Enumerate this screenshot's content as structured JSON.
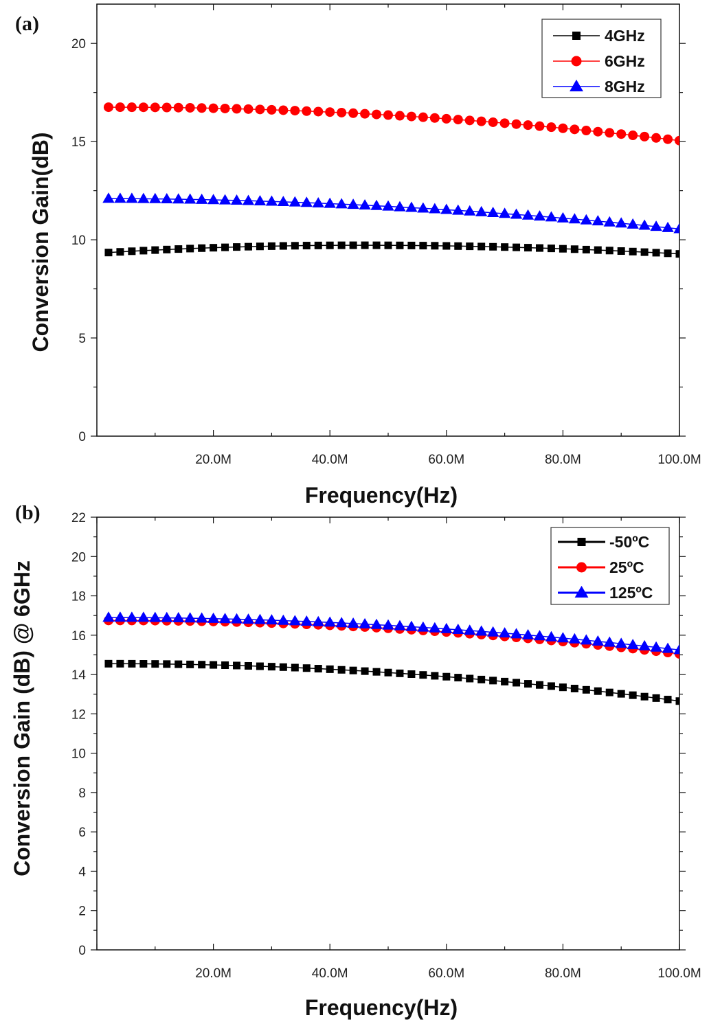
{
  "chart_data": [
    {
      "type": "scatter",
      "panel_label": "(a)",
      "xlabel": "Frequency(Hz)",
      "ylabel": "Conversion Gain(dB)",
      "xlim": [
        0,
        100
      ],
      "ylim": [
        0,
        22
      ],
      "x_unit": "MHz",
      "x_ticks": [
        20,
        40,
        60,
        80,
        100
      ],
      "x_tick_labels": [
        "20.0M",
        "40.0M",
        "60.0M",
        "80.0M",
        "100.0M"
      ],
      "y_ticks": [
        0,
        5,
        10,
        15,
        20
      ],
      "y_tick_labels": [
        "0",
        "5",
        "10",
        "15",
        "20"
      ],
      "legend_position": "top-right",
      "grid": false,
      "x": [
        2,
        4,
        6,
        8,
        10,
        12,
        14,
        16,
        18,
        20,
        22,
        24,
        26,
        28,
        30,
        32,
        34,
        36,
        38,
        40,
        42,
        44,
        46,
        48,
        50,
        52,
        54,
        56,
        58,
        60,
        62,
        64,
        66,
        68,
        70,
        72,
        74,
        76,
        78,
        80,
        82,
        84,
        86,
        88,
        90,
        92,
        94,
        96,
        98,
        100
      ],
      "series": [
        {
          "name": "4GHz",
          "color": "#000000",
          "marker": "square",
          "start": 9.35,
          "peak": 9.72,
          "peak_x": 45,
          "end": 9.28
        },
        {
          "name": "6GHz",
          "color": "#ff0000",
          "marker": "circle",
          "start": 16.75,
          "mid": 16.35,
          "end": 15.05
        },
        {
          "name": "8GHz",
          "color": "#0000ff",
          "marker": "triangle",
          "start": 12.1,
          "mid": 11.7,
          "end": 10.55
        }
      ]
    },
    {
      "type": "scatter",
      "panel_label": "(b)",
      "xlabel": "Frequency(Hz)",
      "ylabel": "Conversion Gain (dB) @ 6GHz",
      "xlim": [
        0,
        100
      ],
      "ylim": [
        0,
        22
      ],
      "x_unit": "MHz",
      "x_ticks": [
        20,
        40,
        60,
        80,
        100
      ],
      "x_tick_labels": [
        "20.0M",
        "40.0M",
        "60.0M",
        "80.0M",
        "100.0M"
      ],
      "y_ticks": [
        0,
        2,
        4,
        6,
        8,
        10,
        12,
        14,
        16,
        18,
        20,
        22
      ],
      "y_tick_labels": [
        "0",
        "2",
        "4",
        "6",
        "8",
        "10",
        "12",
        "14",
        "16",
        "18",
        "20",
        "22"
      ],
      "legend_position": "top-right",
      "grid": false,
      "x": [
        2,
        4,
        6,
        8,
        10,
        12,
        14,
        16,
        18,
        20,
        22,
        24,
        26,
        28,
        30,
        32,
        34,
        36,
        38,
        40,
        42,
        44,
        46,
        48,
        50,
        52,
        54,
        56,
        58,
        60,
        62,
        64,
        66,
        68,
        70,
        72,
        74,
        76,
        78,
        80,
        82,
        84,
        86,
        88,
        90,
        92,
        94,
        96,
        98,
        100
      ],
      "series": [
        {
          "name": "-50ºC",
          "color": "#000000",
          "marker": "square",
          "start": 14.55,
          "mid": 14.1,
          "end": 12.65
        },
        {
          "name": "25ºC",
          "color": "#ff0000",
          "marker": "circle",
          "start": 16.75,
          "mid": 16.35,
          "end": 15.05
        },
        {
          "name": "125ºC",
          "color": "#0000ff",
          "marker": "triangle",
          "start": 16.9,
          "mid": 16.5,
          "end": 15.25
        }
      ]
    }
  ]
}
